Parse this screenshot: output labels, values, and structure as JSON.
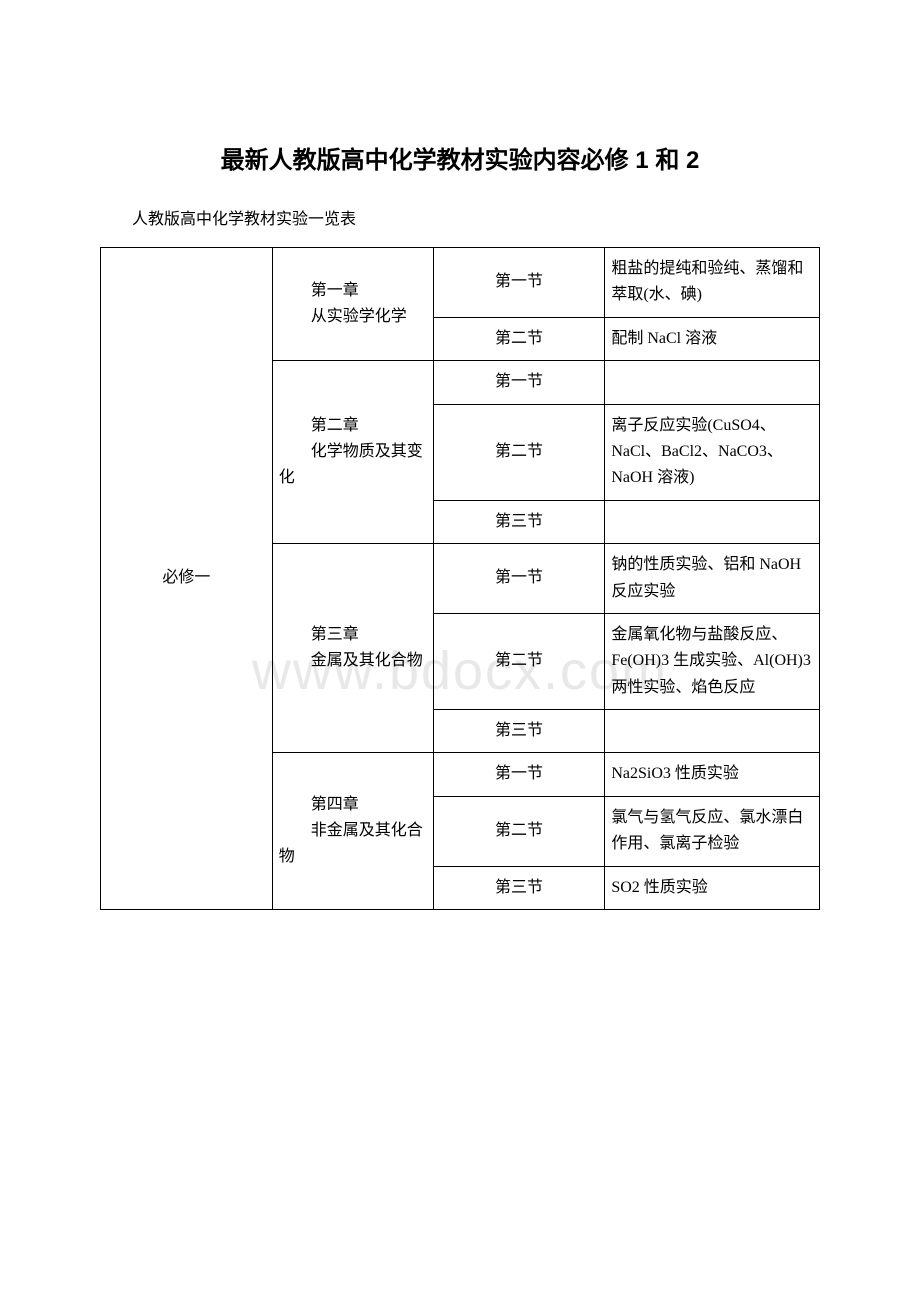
{
  "title": "最新人教版高中化学教材实验内容必修 1 和 2",
  "subtitle": "人教版高中化学教材实验一览表",
  "watermark": "www.bdocx.com",
  "table": {
    "volume": "必修一",
    "chapters": [
      {
        "chapter_num": "第一章",
        "chapter_name": "从实验学化学",
        "sections": [
          {
            "section": "第一节",
            "experiment": "粗盐的提纯和验纯、蒸馏和萃取(水、碘)"
          },
          {
            "section": "第二节",
            "experiment": "配制 NaCl 溶液"
          }
        ]
      },
      {
        "chapter_num": "第二章",
        "chapter_name": "化学物质及其变化",
        "sections": [
          {
            "section": "第一节",
            "experiment": ""
          },
          {
            "section": "第二节",
            "experiment": "离子反应实验(CuSO4、NaCl、BaCl2、NaCO3、NaOH 溶液)"
          },
          {
            "section": "第三节",
            "experiment": ""
          }
        ]
      },
      {
        "chapter_num": "第三章",
        "chapter_name": "金属及其化合物",
        "sections": [
          {
            "section": "第一节",
            "experiment": "钠的性质实验、铝和 NaOH 反应实验"
          },
          {
            "section": "第二节",
            "experiment": "金属氧化物与盐酸反应、Fe(OH)3 生成实验、Al(OH)3 两性实验、焰色反应"
          },
          {
            "section": "第三节",
            "experiment": ""
          }
        ]
      },
      {
        "chapter_num": "第四章",
        "chapter_name": "非金属及其化合物",
        "sections": [
          {
            "section": "第一节",
            "experiment": "Na2SiO3 性质实验"
          },
          {
            "section": "第二节",
            "experiment": "氯气与氢气反应、氯水漂白作用、氯离子检验"
          },
          {
            "section": "第三节",
            "experiment": "SO2 性质实验"
          }
        ]
      }
    ]
  },
  "styles": {
    "page_bg": "#ffffff",
    "border_color": "#000000",
    "watermark_color": "#e8e8e8",
    "title_fontsize": 24,
    "body_fontsize": 16,
    "watermark_fontsize": 54
  }
}
